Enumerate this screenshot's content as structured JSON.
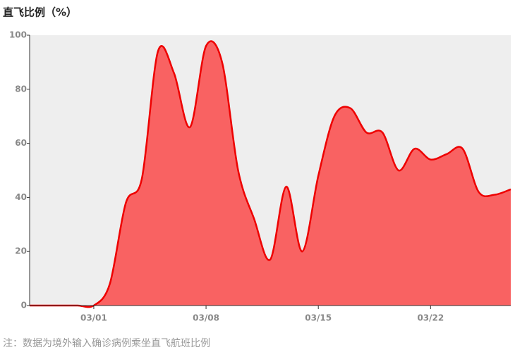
{
  "chart_data": {
    "type": "area",
    "title": "直飞比例（%）",
    "note": "注：数据为境外输入确诊病例乘坐直飞航班比例",
    "categories": [
      null,
      null,
      null,
      null,
      "03/01",
      null,
      null,
      null,
      null,
      null,
      null,
      "03/08",
      null,
      null,
      null,
      null,
      null,
      null,
      "03/15",
      null,
      null,
      null,
      null,
      null,
      null,
      "03/22",
      null,
      null,
      null,
      null,
      null
    ],
    "series": [
      {
        "name": "直飞比例",
        "color": "#ee0000",
        "fill": "#f96262",
        "values": [
          0,
          0,
          0,
          0,
          0,
          8,
          38,
          47,
          94,
          86,
          66,
          96,
          90,
          50,
          32,
          17,
          44,
          20,
          48,
          70,
          73,
          64,
          64,
          50,
          58,
          54,
          56,
          58,
          42,
          41,
          43
        ]
      }
    ],
    "ylim": [
      0,
      100
    ],
    "yticks": [
      0,
      20,
      40,
      60,
      80,
      100
    ],
    "background": "#eeeeee"
  }
}
